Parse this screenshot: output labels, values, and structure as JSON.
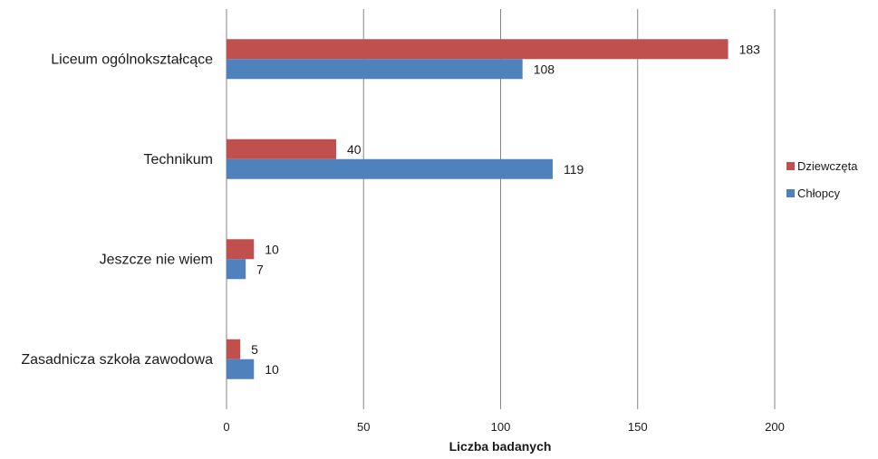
{
  "chart_data": {
    "type": "bar",
    "orientation": "horizontal",
    "categories": [
      "Liceum ogólnokształcące",
      "Technikum",
      "Jeszcze nie wiem",
      "Zasadnicza szkoła zawodowa"
    ],
    "series": [
      {
        "name": "Dziewczęta",
        "color": "#c0504d",
        "values": [
          183,
          40,
          10,
          5
        ]
      },
      {
        "name": "Chłopcy",
        "color": "#4f81bd",
        "values": [
          108,
          119,
          7,
          10
        ]
      }
    ],
    "xlabel": "Liczba badanych",
    "xlim": [
      0,
      200
    ],
    "xticks": [
      0,
      50,
      100,
      150,
      200
    ],
    "grid": true,
    "legend_position": "right",
    "data_labels": true
  }
}
